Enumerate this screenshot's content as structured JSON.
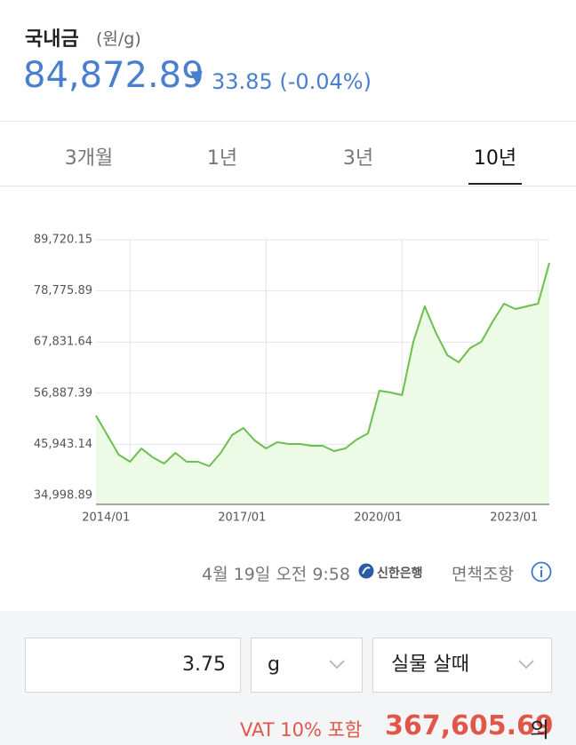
{
  "header": {
    "title": "국내금",
    "unit": "(원/g)",
    "price": "84,872.89",
    "change_arrow": "▼",
    "change": "33.85 (-0.04%)"
  },
  "tabs": [
    {
      "label": "3개월",
      "selected": false
    },
    {
      "label": "1년",
      "selected": false
    },
    {
      "label": "3년",
      "selected": false
    },
    {
      "label": "10년",
      "selected": true
    }
  ],
  "chart_data": {
    "type": "line",
    "categories": [
      null,
      null,
      null,
      "2014/01",
      null,
      null,
      null,
      null,
      null,
      null,
      null,
      null,
      null,
      null,
      null,
      "2017/01",
      null,
      null,
      null,
      null,
      null,
      null,
      null,
      null,
      null,
      null,
      null,
      "2020/01",
      null,
      null,
      null,
      null,
      null,
      null,
      null,
      null,
      null,
      null,
      null,
      "2023/01",
      null
    ],
    "series": [
      {
        "color": "#6cbf4c",
        "fill": "#ebfbe6",
        "values": [
          52100,
          47920,
          43740,
          42220,
          45070,
          43170,
          41840,
          44120,
          42220,
          42220,
          41270,
          44120,
          47920,
          49440,
          46780,
          45070,
          46400,
          46020,
          46020,
          45640,
          45640,
          44500,
          45070,
          46970,
          48300,
          57420,
          57040,
          56470,
          67870,
          75470,
          69770,
          65020,
          63500,
          66540,
          67870,
          72240,
          76040,
          74900,
          75470,
          76040,
          84780
        ]
      }
    ],
    "ylim": [
      34998.89,
      89720.15
    ],
    "yticks": [
      {
        "value": 34998.89,
        "label": "34,998.89"
      },
      {
        "value": 45943.14,
        "label": "45,943.14"
      },
      {
        "value": 56887.39,
        "label": "56,887.39"
      },
      {
        "value": 67831.64,
        "label": "67,831.64"
      },
      {
        "value": 78775.89,
        "label": "78,775.89"
      },
      {
        "value": 89720.15,
        "label": "89,720.15"
      }
    ],
    "grid": true
  },
  "footer": {
    "timestamp": "4월 19일 오전 9:58",
    "bank": "신한은행",
    "disclaimer": "면책조항"
  },
  "calculator": {
    "quantity": "3.75",
    "unit": "g",
    "mode": "실물 살때",
    "vat_label": "VAT 10% 포함",
    "total": "367,605.69",
    "suffix": "의"
  }
}
